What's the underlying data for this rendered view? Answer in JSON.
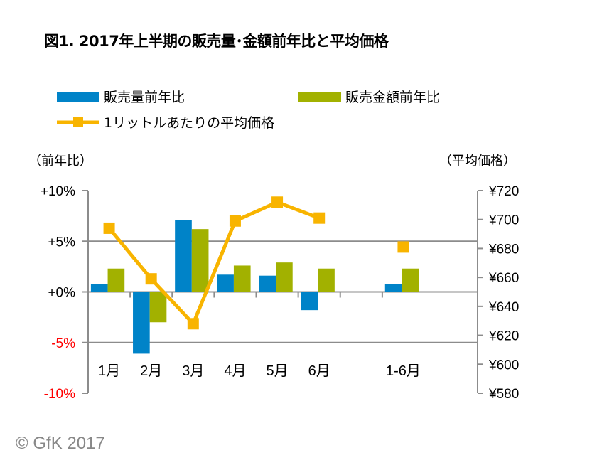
{
  "title": "図1. 2017年上半期の販売量･金額前年比と平均価格",
  "copyright": "© GfK 2017",
  "chart_data": {
    "type": "bar",
    "title": "図1. 2017年上半期の販売量･金額前年比と平均価格",
    "categories": [
      "1月",
      "2月",
      "3月",
      "4月",
      "5月",
      "6月",
      "",
      "1-6月"
    ],
    "ylabel_left": "（前年比）",
    "ylabel_right": "（平均価格）",
    "ylim_left": [
      -10,
      10
    ],
    "ylim_right": [
      580,
      720
    ],
    "yticks_left": [
      "+10%",
      "+5%",
      "+0%",
      "-5%",
      "-10%"
    ],
    "yticks_right": [
      "¥720",
      "¥700",
      "¥680",
      "¥660",
      "¥640",
      "¥620",
      "¥600",
      "¥580"
    ],
    "legend_placement": "top",
    "grid": "horizontal at +5%, 0%, -5%",
    "series": [
      {
        "name": "販売量前年比",
        "kind": "bar",
        "axis": "left",
        "color": "#0083C8",
        "values": [
          0.8,
          -6.1,
          7.1,
          1.7,
          1.6,
          -1.8,
          null,
          0.8
        ]
      },
      {
        "name": "販売金額前年比",
        "kind": "bar",
        "axis": "left",
        "color": "#A2B100",
        "values": [
          2.3,
          -3.0,
          6.2,
          2.6,
          2.9,
          2.3,
          null,
          2.3
        ]
      },
      {
        "name": "1リットルあたりの平均価格",
        "kind": "line",
        "axis": "right",
        "color": "#F8B400",
        "values": [
          694,
          659,
          628,
          699,
          712,
          701,
          null,
          681
        ]
      }
    ],
    "negative_tick_color": "#FF0000"
  }
}
